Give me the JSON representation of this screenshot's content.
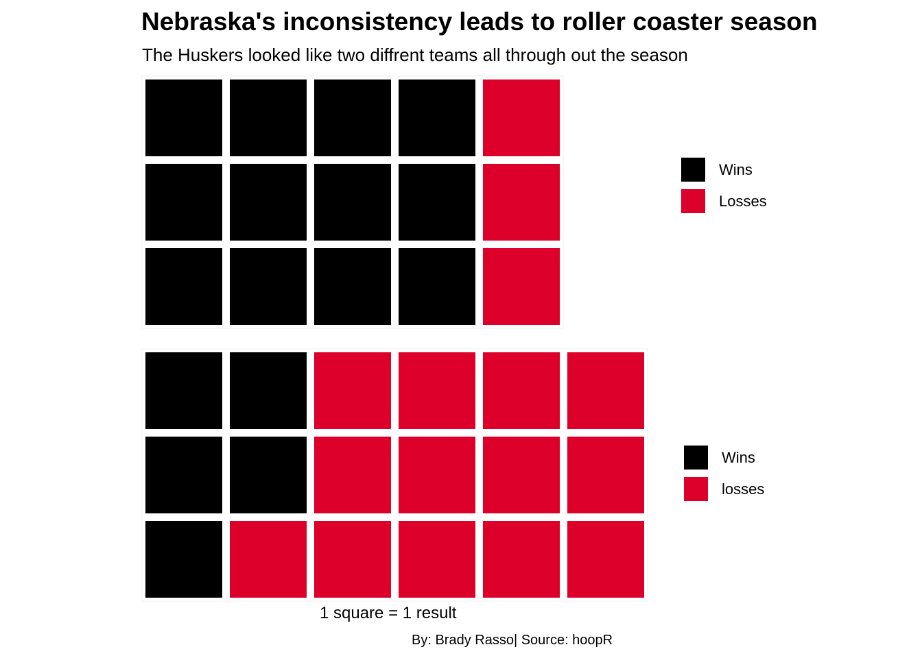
{
  "header": {
    "title": "Nebraska's inconsistency leads to roller coaster season",
    "subtitle": "The Huskers looked like two diffrent teams all through out the season"
  },
  "colors": {
    "wins": "#000000",
    "losses": "#DC002A"
  },
  "chart_data": [
    {
      "type": "waffle",
      "rows": 3,
      "fill_order": "column-major",
      "categories": [
        "Wins",
        "Losses"
      ],
      "values": [
        12,
        3
      ],
      "legend": [
        {
          "label": "Wins",
          "color": "#000000"
        },
        {
          "label": "Losses",
          "color": "#DC002A"
        }
      ],
      "legend_position": "right"
    },
    {
      "type": "waffle",
      "rows": 3,
      "fill_order": "column-major",
      "categories": [
        "Wins",
        "losses"
      ],
      "values": [
        5,
        13
      ],
      "legend": [
        {
          "label": "Wins",
          "color": "#000000"
        },
        {
          "label": "losses",
          "color": "#DC002A"
        }
      ],
      "legend_position": "right"
    }
  ],
  "footer": {
    "caption": "1 square = 1 result",
    "credit": "By: Brady Rasso| Source: hoopR"
  }
}
